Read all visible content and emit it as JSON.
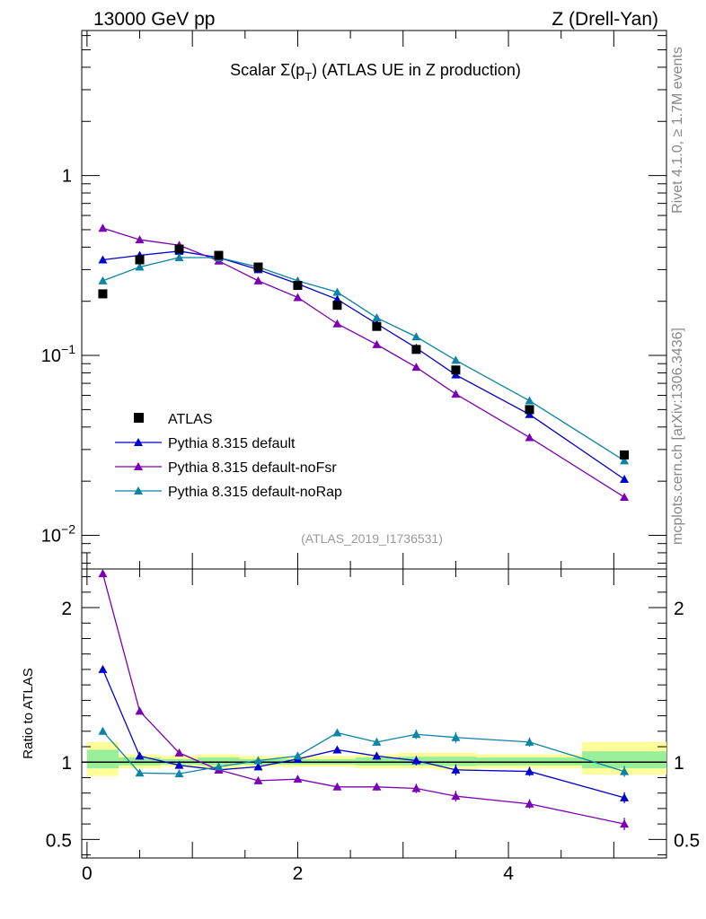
{
  "header": {
    "left": "13000 GeV pp",
    "right": "Z (Drell-Yan)"
  },
  "side": {
    "rivet": "Rivet 4.1.0, ≥ 1.7M events",
    "mcplots": "mcplots.cern.ch [arXiv:1306.3436]"
  },
  "chart_data": {
    "type": "line",
    "title_prefix": "Scalar Σ(p",
    "title_sub": "T",
    "title_suffix": ") (ATLAS UE in Z production)",
    "analysis_id": "(ATLAS_2019_I1736531)",
    "x": [
      0.15,
      0.5,
      0.875,
      1.25,
      1.625,
      2.0,
      2.375,
      2.75,
      3.125,
      3.5,
      4.2,
      5.1
    ],
    "main": {
      "yscale": "log",
      "ylim": [
        0.0065,
        6.4
      ],
      "yticks": [
        {
          "value": 1,
          "label": "1"
        },
        {
          "value": 0.1,
          "label": "10",
          "exp": "−1"
        },
        {
          "value": 0.01,
          "label": "10",
          "exp": "−2"
        }
      ],
      "data": {
        "name": "ATLAS",
        "values": [
          0.22,
          0.34,
          0.39,
          0.36,
          0.31,
          0.245,
          0.19,
          0.145,
          0.108,
          0.083,
          0.05,
          0.028
        ]
      },
      "series": [
        {
          "name": "Pythia 8.315 default",
          "color": "#0000cc",
          "values": [
            0.34,
            0.36,
            0.38,
            0.35,
            0.3,
            0.25,
            0.205,
            0.15,
            0.11,
            0.078,
            0.047,
            0.0205
          ]
        },
        {
          "name": "Pythia 8.315 default-noFsr",
          "color": "#7b00b3",
          "values": [
            0.51,
            0.44,
            0.41,
            0.335,
            0.26,
            0.21,
            0.15,
            0.115,
            0.086,
            0.061,
            0.035,
            0.0163
          ]
        },
        {
          "name": "Pythia 8.315 default-noRap",
          "color": "#0b84a5",
          "values": [
            0.26,
            0.31,
            0.35,
            0.35,
            0.31,
            0.26,
            0.225,
            0.162,
            0.127,
            0.094,
            0.056,
            0.026
          ]
        }
      ]
    },
    "ratio": {
      "ylabel": "Ratio to ATLAS",
      "ylim": [
        0.38,
        2.25
      ],
      "yticks": [
        {
          "value": 0.5,
          "label": "0.5"
        },
        {
          "value": 1,
          "label": "1"
        },
        {
          "value": 2,
          "label": "2"
        }
      ],
      "band_edges": [
        0,
        0.3,
        0.7,
        1.05,
        1.45,
        1.8,
        2.2,
        2.55,
        2.95,
        3.3,
        3.7,
        4.7,
        5.5
      ],
      "band_yellow": [
        [
          0.91,
          1.13
        ],
        [
          0.96,
          1.05
        ],
        [
          0.97,
          1.04
        ],
        [
          0.96,
          1.05
        ],
        [
          0.97,
          1.04
        ],
        [
          0.97,
          1.04
        ],
        [
          0.97,
          1.04
        ],
        [
          0.96,
          1.05
        ],
        [
          0.96,
          1.06
        ],
        [
          0.95,
          1.06
        ],
        [
          0.96,
          1.05
        ],
        [
          0.92,
          1.13
        ]
      ],
      "band_green": [
        [
          0.96,
          1.08
        ],
        [
          0.98,
          1.03
        ],
        [
          0.985,
          1.02
        ],
        [
          0.98,
          1.03
        ],
        [
          0.985,
          1.02
        ],
        [
          0.985,
          1.02
        ],
        [
          0.985,
          1.02
        ],
        [
          0.98,
          1.03
        ],
        [
          0.98,
          1.035
        ],
        [
          0.975,
          1.035
        ],
        [
          0.98,
          1.03
        ],
        [
          0.96,
          1.07
        ]
      ],
      "series": [
        {
          "name": "Pythia 8.315 default",
          "color": "#0000cc",
          "values": [
            1.6,
            1.04,
            0.98,
            0.95,
            0.97,
            1.02,
            1.08,
            1.04,
            1.01,
            0.95,
            0.94,
            0.77
          ],
          "errors": [
            0.02,
            0.02,
            0.015,
            0.015,
            0.015,
            0.015,
            0.02,
            0.025,
            0.03,
            0.035,
            0.03,
            0.035
          ]
        },
        {
          "name": "Pythia 8.315 default-noFsr",
          "color": "#7b00b3",
          "values": [
            2.22,
            1.33,
            1.06,
            0.95,
            0.88,
            0.89,
            0.84,
            0.84,
            0.83,
            0.78,
            0.73,
            0.6
          ],
          "errors": [
            0.02,
            0.02,
            0.015,
            0.015,
            0.015,
            0.015,
            0.02,
            0.025,
            0.03,
            0.035,
            0.03,
            0.04
          ]
        },
        {
          "name": "Pythia 8.315 default-noRap",
          "color": "#0b84a5",
          "values": [
            1.2,
            0.93,
            0.925,
            0.97,
            1.01,
            1.04,
            1.19,
            1.13,
            1.18,
            1.16,
            1.13,
            0.94
          ],
          "errors": [
            0.02,
            0.015,
            0.015,
            0.015,
            0.015,
            0.015,
            0.02,
            0.025,
            0.03,
            0.035,
            0.03,
            0.035
          ]
        }
      ]
    },
    "xaxis": {
      "xlim": [
        -0.05,
        5.5
      ],
      "ticks": [
        {
          "value": 0,
          "label": "0"
        },
        {
          "value": 2,
          "label": "2"
        },
        {
          "value": 4,
          "label": "4"
        }
      ]
    }
  }
}
